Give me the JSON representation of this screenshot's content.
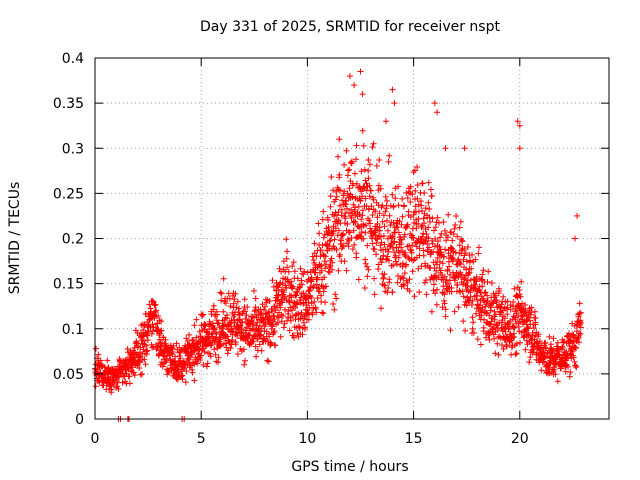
{
  "chart_data": {
    "type": "scatter",
    "title": "Day 331 of 2025, SRMTID for receiver nspt",
    "xlabel": "GPS time / hours",
    "ylabel": "SRMTID / TECUs",
    "xlim": [
      0,
      24.2
    ],
    "ylim": [
      0,
      0.4
    ],
    "x_ticks": [
      0,
      5,
      10,
      15,
      20
    ],
    "x_tick_labels": [
      "0",
      "5",
      "10",
      "15",
      "20"
    ],
    "y_ticks": [
      0,
      0.05,
      0.1,
      0.15,
      0.2,
      0.25,
      0.3,
      0.35,
      0.4
    ],
    "y_tick_labels": [
      "0",
      "0.05",
      "0.1",
      "0.15",
      "0.2",
      "0.25",
      "0.3",
      "0.35",
      "0.4"
    ],
    "grid": true,
    "marker": "+",
    "series": [
      {
        "name": "SRMTID",
        "color": "#ff0000",
        "trend": [
          [
            0.0,
            0.055
          ],
          [
            0.5,
            0.048
          ],
          [
            1.0,
            0.045
          ],
          [
            1.5,
            0.058
          ],
          [
            2.0,
            0.072
          ],
          [
            2.5,
            0.095
          ],
          [
            2.8,
            0.115
          ],
          [
            3.2,
            0.075
          ],
          [
            3.6,
            0.065
          ],
          [
            4.0,
            0.06
          ],
          [
            4.5,
            0.072
          ],
          [
            5.0,
            0.085
          ],
          [
            5.5,
            0.095
          ],
          [
            6.0,
            0.105
          ],
          [
            6.5,
            0.11
          ],
          [
            7.0,
            0.1
          ],
          [
            7.5,
            0.095
          ],
          [
            8.0,
            0.1
          ],
          [
            8.5,
            0.12
          ],
          [
            9.0,
            0.145
          ],
          [
            9.5,
            0.125
          ],
          [
            10.0,
            0.13
          ],
          [
            10.5,
            0.16
          ],
          [
            11.0,
            0.19
          ],
          [
            11.5,
            0.215
          ],
          [
            12.0,
            0.235
          ],
          [
            12.5,
            0.245
          ],
          [
            13.0,
            0.225
          ],
          [
            13.5,
            0.2
          ],
          [
            14.0,
            0.2
          ],
          [
            14.5,
            0.19
          ],
          [
            15.0,
            0.225
          ],
          [
            15.5,
            0.205
          ],
          [
            16.0,
            0.185
          ],
          [
            16.5,
            0.165
          ],
          [
            17.0,
            0.175
          ],
          [
            17.5,
            0.15
          ],
          [
            18.0,
            0.135
          ],
          [
            18.5,
            0.12
          ],
          [
            19.0,
            0.11
          ],
          [
            19.5,
            0.1
          ],
          [
            20.0,
            0.115
          ],
          [
            20.5,
            0.105
          ],
          [
            21.0,
            0.07
          ],
          [
            21.5,
            0.065
          ],
          [
            22.0,
            0.068
          ],
          [
            22.5,
            0.08
          ],
          [
            22.9,
            0.1
          ]
        ],
        "coverage": [
          [
            0.0,
            22.9
          ]
        ],
        "spread_ratio": 0.32,
        "zero_points": [
          1.1,
          1.2,
          1.55,
          1.6,
          4.1,
          4.2
        ],
        "outliers": [
          [
            12.0,
            0.38
          ],
          [
            12.2,
            0.37
          ],
          [
            12.5,
            0.385
          ],
          [
            12.6,
            0.36
          ],
          [
            14.0,
            0.365
          ],
          [
            14.1,
            0.35
          ],
          [
            16.0,
            0.35
          ],
          [
            16.1,
            0.34
          ],
          [
            19.9,
            0.33
          ],
          [
            20.0,
            0.325
          ],
          [
            20.0,
            0.3
          ],
          [
            22.7,
            0.225
          ],
          [
            22.6,
            0.2
          ],
          [
            13.7,
            0.33
          ],
          [
            16.5,
            0.3
          ],
          [
            17.4,
            0.3
          ],
          [
            11.5,
            0.31
          ]
        ]
      }
    ]
  }
}
